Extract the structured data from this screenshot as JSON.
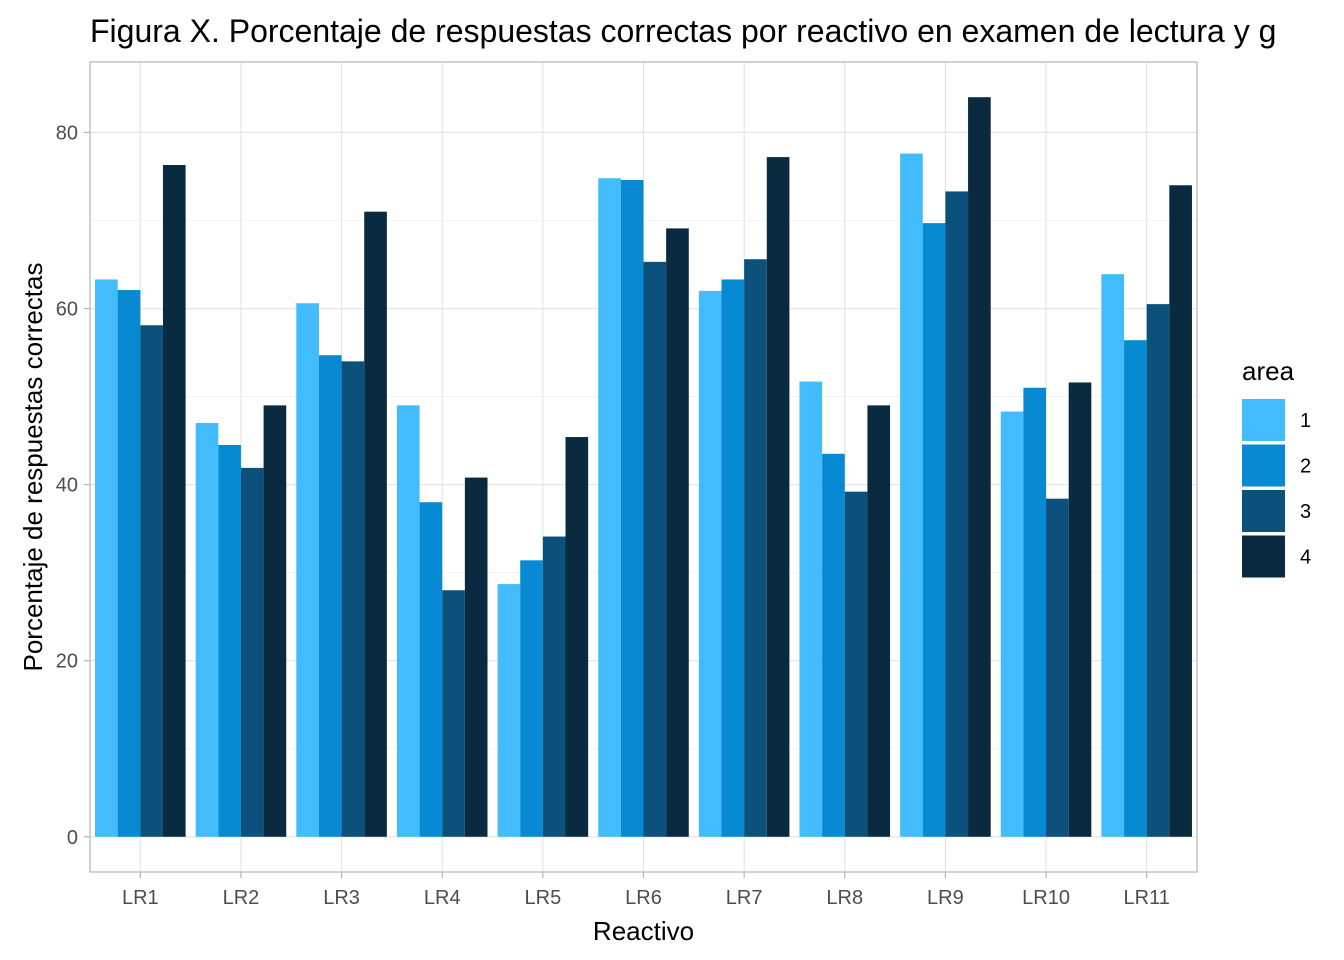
{
  "chart_data": {
    "type": "bar",
    "title": "Figura X. Porcentaje de respuestas correctas por reactivo en examen de lectura y g",
    "xlabel": "Reactivo",
    "ylabel": "Porcentaje de respuestas correctas",
    "ylim": [
      -4,
      88
    ],
    "yticks": [
      0,
      20,
      40,
      60,
      80
    ],
    "yticks_minor": [
      10,
      30,
      50,
      70
    ],
    "grid": true,
    "legend": {
      "title": "area",
      "position": "right"
    },
    "categories": [
      "LR1",
      "LR2",
      "LR3",
      "LR4",
      "LR5",
      "LR6",
      "LR7",
      "LR8",
      "LR9",
      "LR10",
      "LR11"
    ],
    "series": [
      {
        "name": "1",
        "color": "#42bcfc",
        "values": [
          63.3,
          47.0,
          60.6,
          49.0,
          28.7,
          74.8,
          62.0,
          51.7,
          77.6,
          48.3,
          63.9
        ]
      },
      {
        "name": "2",
        "color": "#078ad2",
        "values": [
          62.1,
          44.5,
          54.7,
          38.0,
          31.4,
          74.6,
          63.3,
          43.5,
          69.7,
          51.0,
          56.4
        ]
      },
      {
        "name": "3",
        "color": "#0c517b",
        "values": [
          58.1,
          41.9,
          54.0,
          28.0,
          34.1,
          65.3,
          65.6,
          39.2,
          73.3,
          38.4,
          60.5
        ]
      },
      {
        "name": "4",
        "color": "#0a2a40",
        "values": [
          76.3,
          49.0,
          71.0,
          40.8,
          45.4,
          69.1,
          77.2,
          49.0,
          84.0,
          51.6,
          74.0
        ]
      }
    ]
  }
}
